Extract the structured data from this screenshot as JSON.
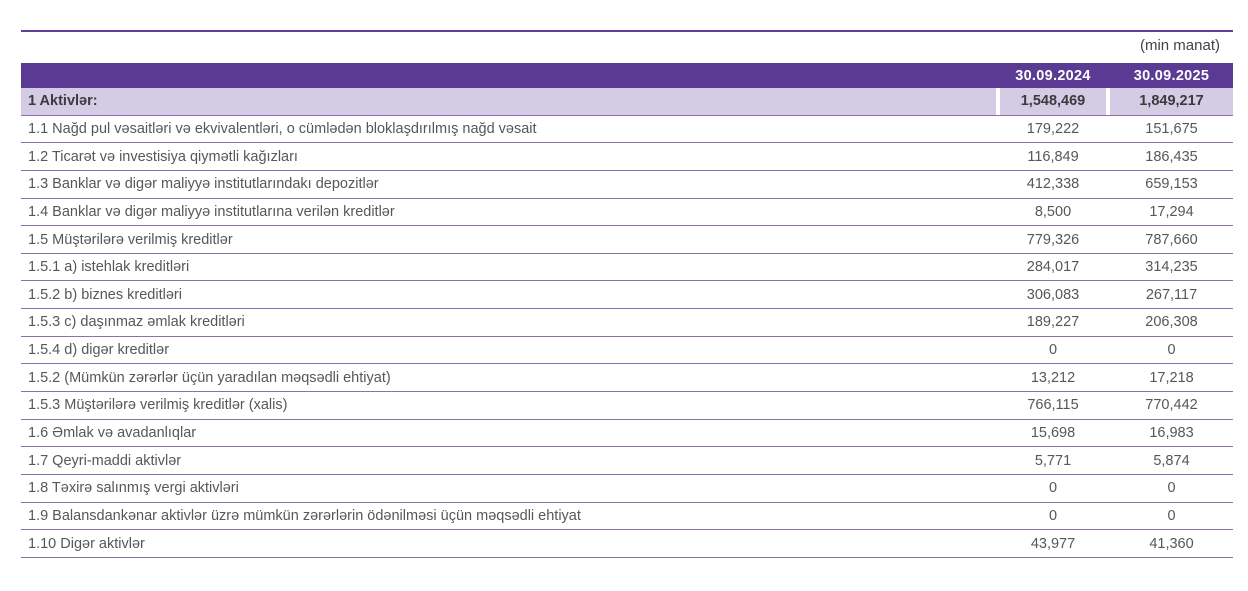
{
  "unit_note": "(min manat)",
  "colors": {
    "header_purple": "#5b3a94",
    "highlight_row": "#d3cce4",
    "row_border": "#8e6fb0",
    "top_rule": "#5f4199",
    "text": "#57575b",
    "text_bold": "#3b3a3d"
  },
  "table": {
    "columns": [
      "30.09.2024",
      "30.09.2025"
    ],
    "rows": [
      {
        "label": "1 Aktivlər:",
        "v2024": "1,548,469",
        "v2025": "1,849,217",
        "highlight": true,
        "bold": true
      },
      {
        "label": "1.1 Nağd pul vəsaitləri və ekvivalentləri, o cümlədən bloklaşdırılmış nağd vəsait",
        "v2024": "179,222",
        "v2025": "151,675",
        "highlight": false,
        "bold": false
      },
      {
        "label": "1.2 Ticarət və investisiya qiymətli kağızları",
        "v2024": "116,849",
        "v2025": "186,435",
        "highlight": false,
        "bold": false
      },
      {
        "label": "1.3 Banklar və digər maliyyə institutlarındakı depozitlər",
        "v2024": "412,338",
        "v2025": "659,153",
        "highlight": false,
        "bold": false
      },
      {
        "label": "1.4 Banklar və digər maliyyə institutlarına verilən kreditlər",
        "v2024": "8,500",
        "v2025": "17,294",
        "highlight": false,
        "bold": false
      },
      {
        "label": "1.5 Müştərilərə verilmiş kreditlər",
        "v2024": "779,326",
        "v2025": "787,660",
        "highlight": false,
        "bold": false
      },
      {
        "label": "1.5.1 a) istehlak kreditləri",
        "v2024": "284,017",
        "v2025": "314,235",
        "highlight": false,
        "bold": false
      },
      {
        "label": "1.5.2 b) biznes kreditləri",
        "v2024": "306,083",
        "v2025": "267,117",
        "highlight": false,
        "bold": false
      },
      {
        "label": "1.5.3 c) daşınmaz əmlak kreditləri",
        "v2024": "189,227",
        "v2025": "206,308",
        "highlight": false,
        "bold": false
      },
      {
        "label": "1.5.4 d) digər kreditlər",
        "v2024": "0",
        "v2025": "0",
        "highlight": false,
        "bold": false
      },
      {
        "label": "1.5.2 (Mümkün zərərlər üçün yaradılan məqsədli ehtiyat)",
        "v2024": "13,212",
        "v2025": "17,218",
        "highlight": false,
        "bold": false
      },
      {
        "label": "1.5.3 Müştərilərə verilmiş kreditlər (xalis)",
        "v2024": "766,115",
        "v2025": "770,442",
        "highlight": false,
        "bold": false
      },
      {
        "label": "1.6 Əmlak və avadanlıqlar",
        "v2024": "15,698",
        "v2025": "16,983",
        "highlight": false,
        "bold": false
      },
      {
        "label": "1.7 Qeyri-maddi aktivlər",
        "v2024": "5,771",
        "v2025": "5,874",
        "highlight": false,
        "bold": false
      },
      {
        "label": "1.8 Təxirə salınmış vergi aktivləri",
        "v2024": "0",
        "v2025": "0",
        "highlight": false,
        "bold": false
      },
      {
        "label": "1.9 Balansdankənar aktivlər üzrə mümkün zərərlərin ödənilməsi üçün məqsədli ehtiyat",
        "v2024": "0",
        "v2025": "0",
        "highlight": false,
        "bold": false
      },
      {
        "label": "1.10 Digər aktivlər",
        "v2024": "43,977",
        "v2025": "41,360",
        "highlight": false,
        "bold": false
      }
    ]
  }
}
